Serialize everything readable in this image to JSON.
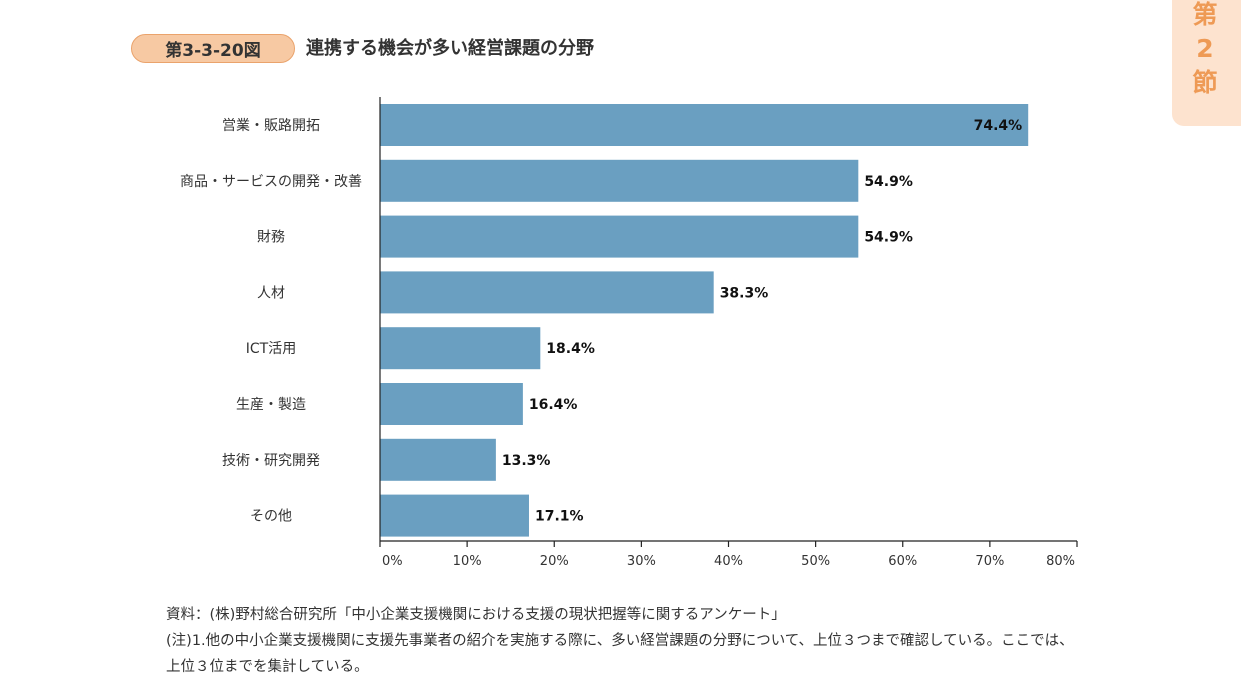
{
  "header": {
    "figure_number": "第3-3-20図",
    "title": "連携する機会が多い経営課題の分野"
  },
  "section_tab": {
    "chars": [
      "第",
      "2",
      "節"
    ]
  },
  "chart_data": {
    "type": "bar",
    "orientation": "horizontal",
    "categories": [
      "営業・販路開拓",
      "商品・サービスの開発・改善",
      "財務",
      "人材",
      "ICT活用",
      "生産・製造",
      "技術・研究開発",
      "その他"
    ],
    "values": [
      74.4,
      54.9,
      54.9,
      38.3,
      18.4,
      16.4,
      13.3,
      17.1
    ],
    "value_labels": [
      "74.4%",
      "54.9%",
      "54.9%",
      "38.3%",
      "18.4%",
      "16.4%",
      "13.3%",
      "17.1%"
    ],
    "xlim": [
      0,
      80
    ],
    "xticks": [
      0,
      10,
      20,
      30,
      40,
      50,
      60,
      70,
      80
    ],
    "xtick_labels": [
      "0%",
      "10%",
      "20%",
      "30%",
      "40%",
      "50%",
      "60%",
      "70%",
      "80%"
    ],
    "bar_color": "#6a9fc1",
    "grid": false,
    "title": "",
    "xlabel": "",
    "ylabel": ""
  },
  "notes": {
    "source": "資料：(株)野村総合研究所「中小企業支援機関における支援の現状把握等に関するアンケート」",
    "note": "(注)1.他の中小企業支援機関に支援先事業者の紹介を実施する際に、多い経営課題の分野について、上位３つまで確認している。ここでは、上位３位までを集計している。"
  }
}
